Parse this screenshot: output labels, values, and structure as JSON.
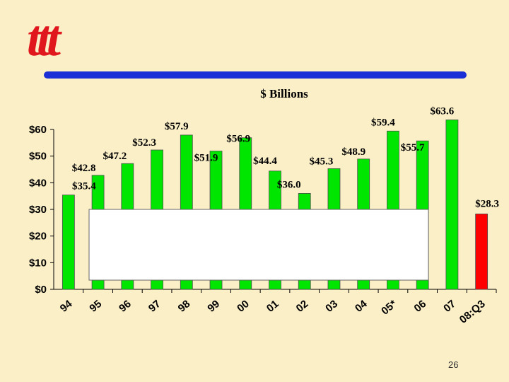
{
  "logo": {
    "text": "ttt",
    "color": "#e0171d"
  },
  "rule_color": "#1a2fd6",
  "slide_number": "26",
  "chart_data": {
    "type": "bar",
    "title": "$ Billions",
    "categories": [
      "94",
      "95",
      "96",
      "97",
      "98",
      "99",
      "00",
      "01",
      "02",
      "03",
      "04",
      "05*",
      "06",
      "07",
      "08:Q3"
    ],
    "values": [
      35.4,
      42.8,
      47.2,
      52.3,
      57.9,
      51.9,
      56.9,
      44.4,
      36.0,
      45.3,
      48.9,
      59.4,
      55.7,
      63.6,
      28.3
    ],
    "data_labels": [
      "$35.4",
      "$42.8",
      "$47.2",
      "$52.3",
      "$57.9",
      "$51.9",
      "$56.9",
      "$44.4",
      "$36.0",
      "$45.3",
      "$48.9",
      "$59.4",
      "$55.7",
      "$63.6",
      "$28.3"
    ],
    "bar_colors": [
      "#00e600",
      "#00e600",
      "#00e600",
      "#00e600",
      "#00e600",
      "#00e600",
      "#00e600",
      "#00e600",
      "#00e600",
      "#00e600",
      "#00e600",
      "#00e600",
      "#00e600",
      "#00e600",
      "#ff0000"
    ],
    "y_ticks": [
      0,
      10,
      20,
      30,
      40,
      50,
      60
    ],
    "y_tick_labels": [
      "$0",
      "$10",
      "$20",
      "$30",
      "$40",
      "$50",
      "$60"
    ],
    "ylim": [
      0,
      60
    ],
    "grid": false,
    "legend": "none",
    "overlay_box": {
      "fill": "#ffffff"
    }
  }
}
